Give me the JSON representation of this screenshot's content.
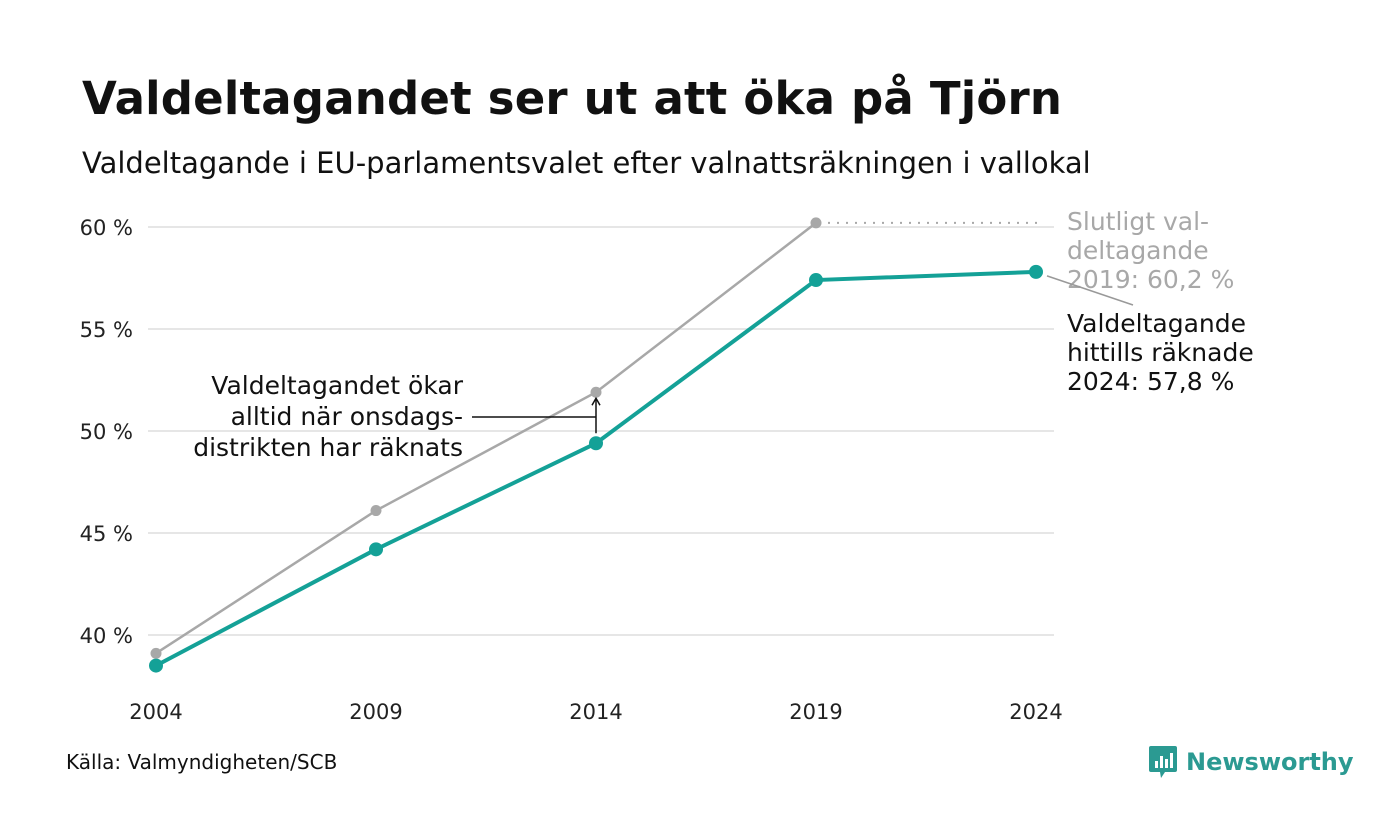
{
  "title": "Valdeltagandet ser ut att öka på Tjörn",
  "subtitle": "Valdeltagande i EU-parlamentsvalet efter valnattsräkningen i vallokal",
  "source": "Källa: Valmyndigheten/SCB",
  "brand": "Newsworthy",
  "colors": {
    "current": "#14a197",
    "final": "#a8a8a8",
    "grid": "#e6e6e6",
    "brand": "#2b9a92"
  },
  "chart_data": {
    "type": "line",
    "x": [
      2004,
      2009,
      2014,
      2019,
      2024
    ],
    "x_tick_labels": [
      "2004",
      "2009",
      "2014",
      "2019",
      "2024"
    ],
    "y_ticks": [
      40,
      45,
      50,
      55,
      60
    ],
    "y_tick_labels": [
      "40 %",
      "45 %",
      "50 %",
      "55 %",
      "60 %"
    ],
    "ylim": [
      38,
      60
    ],
    "grid": true,
    "series": [
      {
        "key": "final",
        "values": [
          39.1,
          46.1,
          51.9,
          60.2,
          null
        ]
      },
      {
        "key": "current",
        "values": [
          38.5,
          44.2,
          49.4,
          57.4,
          57.8
        ]
      }
    ],
    "annotations": {
      "final_label": [
        "Slutligt val-",
        "deltagande",
        "2019: 60,2 %"
      ],
      "current_label": [
        "Valdeltagande",
        "hittills räknade",
        "2024: 57,8 %"
      ],
      "note": [
        "Valdeltagandet ökar",
        "alltid när onsdags-",
        "distrikten har räknats"
      ]
    }
  }
}
